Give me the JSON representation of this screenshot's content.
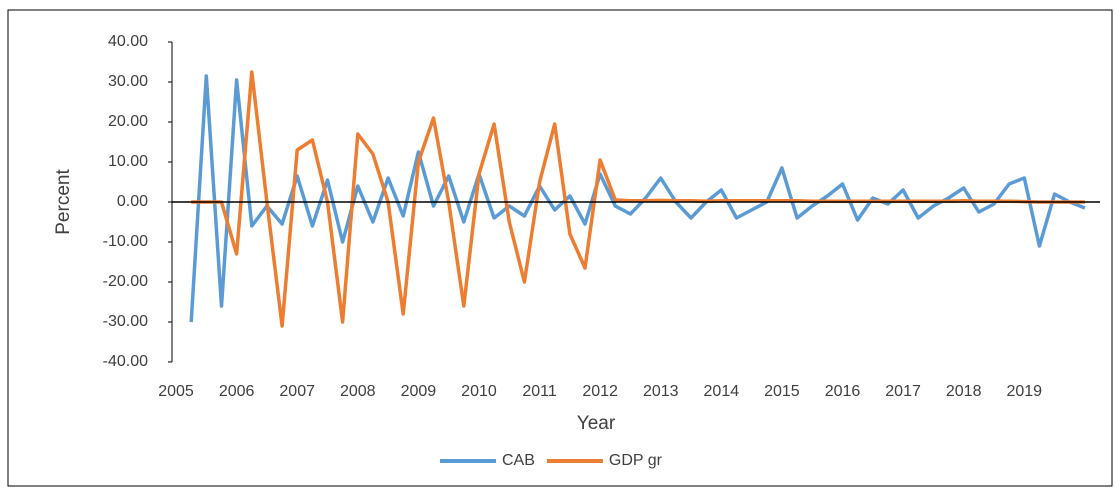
{
  "chart_data": {
    "type": "line",
    "x_label": "Year",
    "y_label": "Percent",
    "x": [
      2005.25,
      2005.5,
      2005.75,
      2006,
      2006.25,
      2006.5,
      2006.75,
      2007,
      2007.25,
      2007.5,
      2007.75,
      2008,
      2008.25,
      2008.5,
      2008.75,
      2009,
      2009.25,
      2009.5,
      2009.75,
      2010,
      2010.25,
      2010.5,
      2010.75,
      2011,
      2011.25,
      2011.5,
      2011.75,
      2012,
      2012.25,
      2012.5,
      2012.75,
      2013,
      2013.25,
      2013.5,
      2013.75,
      2014,
      2014.25,
      2014.5,
      2014.75,
      2015,
      2015.25,
      2015.5,
      2015.75,
      2016,
      2016.25,
      2016.5,
      2016.75,
      2017,
      2017.25,
      2017.5,
      2017.75,
      2018,
      2018.25,
      2018.5,
      2018.75,
      2019,
      2019.25,
      2019.5,
      2019.75,
      2020
    ],
    "series": [
      {
        "name": "CAB",
        "color": "#5b9bd5",
        "values": [
          -30,
          31.5,
          -26,
          30.5,
          -6,
          -1,
          -5.5,
          6.5,
          -6,
          5.5,
          -10,
          4,
          -5,
          6,
          -3.5,
          12.5,
          -1,
          6.5,
          -5,
          7,
          -4,
          -1,
          -3.5,
          4,
          -2,
          1.5,
          -5.5,
          7,
          -1,
          -3,
          1,
          6,
          0,
          -4,
          0,
          3,
          -4,
          -2,
          0,
          8.5,
          -4,
          -1,
          1.5,
          4.5,
          -4.5,
          1,
          -0.5,
          3,
          -4,
          -1,
          1,
          3.5,
          -2.5,
          -0.5,
          4.5,
          6,
          -11,
          2,
          0,
          -1.5
        ]
      },
      {
        "name": "GDP gr",
        "color": "#ed7d31",
        "values": [
          0,
          0,
          0,
          -13,
          32.5,
          0,
          -31,
          13,
          15.5,
          0,
          -30,
          17,
          12,
          0,
          -28,
          10,
          21,
          0,
          -26,
          7,
          19.5,
          -5,
          -20,
          5,
          19.5,
          -8,
          -16.5,
          10.5,
          0.5,
          0.3,
          0.3,
          0.4,
          0.3,
          0.3,
          0.2,
          0.3,
          0.3,
          0.3,
          0.3,
          0.3,
          0.3,
          0.2,
          0.2,
          0.2,
          0.2,
          0.2,
          0.2,
          0.2,
          0.2,
          0.2,
          0.2,
          0.3,
          0.2,
          0.2,
          0.2,
          0.1,
          0,
          0,
          0,
          0
        ]
      }
    ],
    "xlim": [
      2004.95,
      2020.25
    ],
    "xticks": [
      2005,
      2006,
      2007,
      2008,
      2009,
      2010,
      2011,
      2012,
      2013,
      2014,
      2015,
      2016,
      2017,
      2018,
      2019
    ],
    "ylim": [
      -40,
      40
    ],
    "yticks": [
      {
        "value": -40,
        "label": "-40.00"
      },
      {
        "value": -30,
        "label": "-30.00"
      },
      {
        "value": -20,
        "label": "-20.00"
      },
      {
        "value": -10,
        "label": "-10.00"
      },
      {
        "value": 0,
        "label": "0.00"
      },
      {
        "value": 10,
        "label": "10.00"
      },
      {
        "value": 20,
        "label": "20.00"
      },
      {
        "value": 30,
        "label": "30.00"
      },
      {
        "value": 40,
        "label": "40.00"
      }
    ],
    "grid": false,
    "legend": "bottom"
  }
}
